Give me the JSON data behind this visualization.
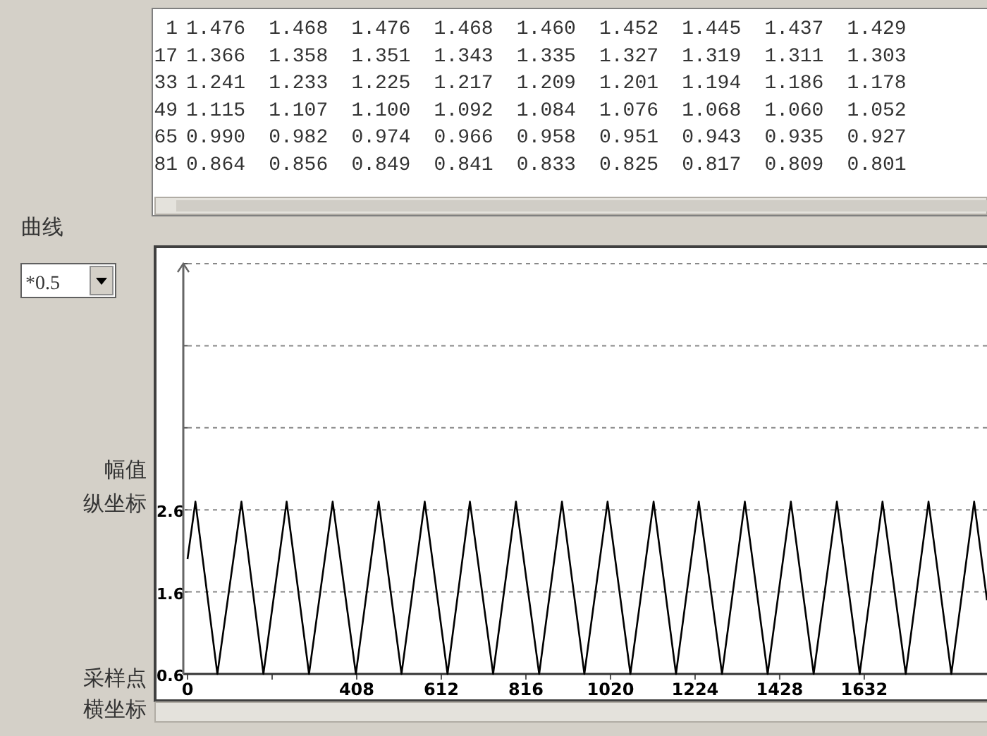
{
  "chart_data": {
    "type": "line",
    "title": "曲线",
    "xlabel": "采样点横坐标",
    "ylabel": "幅值纵坐标",
    "annotations": [
      "1 1.476 1.468 1.476 1.468 1.460 1.452 1.445 1.437 1.429",
      "17 1.366 1.358 1.351 1.343 1.335 1.327 1.319 1.311 1.303",
      "33 1.241 1.233 1.225 1.217 1.209 1.201 1.194 1.186 1.178",
      "49 1.115 1.107 1.100 1.092 1.084 1.076 1.068 1.060 1.052",
      "65 0.990 0.982 0.974 0.966 0.958 0.951 0.943 0.935 0.927",
      "81 0.864 0.856 0.849 0.841 0.833 0.825 0.817 0.809 0.801",
      "*0.5"
    ],
    "series": [
      {
        "color": "#000000",
        "x": [
          0,
          19,
          72,
          130,
          183,
          239,
          293,
          350,
          406,
          461,
          516,
          572,
          627,
          681,
          737,
          792,
          848,
          903,
          957,
          1013,
          1068,
          1124,
          1178,
          1233,
          1289,
          1344,
          1399,
          1455,
          1510,
          1566,
          1621,
          1676,
          1732,
          1787,
          1842,
          1897,
          1928
        ],
        "values": [
          2.0,
          2.7,
          0.6,
          2.7,
          0.6,
          2.7,
          0.6,
          2.7,
          0.6,
          2.7,
          0.6,
          2.7,
          0.6,
          2.7,
          0.6,
          2.7,
          0.6,
          2.7,
          0.6,
          2.7,
          0.6,
          2.7,
          0.6,
          2.7,
          0.6,
          2.7,
          0.6,
          2.7,
          0.6,
          2.7,
          0.6,
          2.7,
          0.6,
          2.7,
          0.6,
          2.7,
          1.5
        ]
      }
    ],
    "xlim": [
      0,
      1928
    ],
    "ylim": [
      0.6,
      5.6
    ],
    "xticks": [
      0,
      {
        "value": 204,
        "label": null
      },
      408,
      612,
      816,
      1020,
      1224,
      1428,
      1632
    ],
    "yticks": [
      0.6,
      1.6,
      2.6,
      {
        "value": 3.6,
        "label": null
      },
      {
        "value": 4.6,
        "label": null
      },
      {
        "value": 5.6,
        "label": null
      }
    ],
    "grid": "y",
    "line_style": "solid"
  }
}
